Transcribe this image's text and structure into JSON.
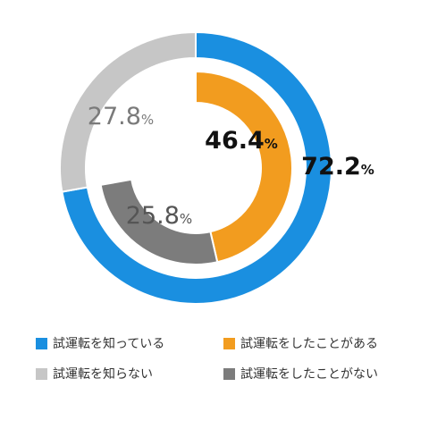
{
  "chart_data": {
    "type": "pie",
    "variant": "double-donut",
    "title": "",
    "rings": [
      {
        "ring": "outer",
        "slices": [
          {
            "label": "試運転を知っている",
            "value": 72.2,
            "display": "72.2",
            "unit": "%",
            "color": "#1a8fe0"
          },
          {
            "label": "試運転を知らない",
            "value": 27.8,
            "display": "27.8",
            "unit": "%",
            "color": "#c6c6c6"
          }
        ]
      },
      {
        "ring": "inner",
        "slices": [
          {
            "label": "試運転をしたことがある",
            "value": 46.4,
            "display": "46.4",
            "unit": "%",
            "color": "#f29c1f"
          },
          {
            "label": "試運転をしたことがない",
            "value": 25.8,
            "display": "25.8",
            "unit": "%",
            "color": "#7c7c7c"
          }
        ]
      }
    ],
    "legend": {
      "placement": "bottom",
      "items": [
        {
          "label": "試運転を知っている",
          "color": "#1a8fe0"
        },
        {
          "label": "試運転をしたことがある",
          "color": "#f29c1f"
        },
        {
          "label": "試運転を知らない",
          "color": "#c6c6c6"
        },
        {
          "label": "試運転をしたことがない",
          "color": "#7c7c7c"
        }
      ]
    }
  }
}
